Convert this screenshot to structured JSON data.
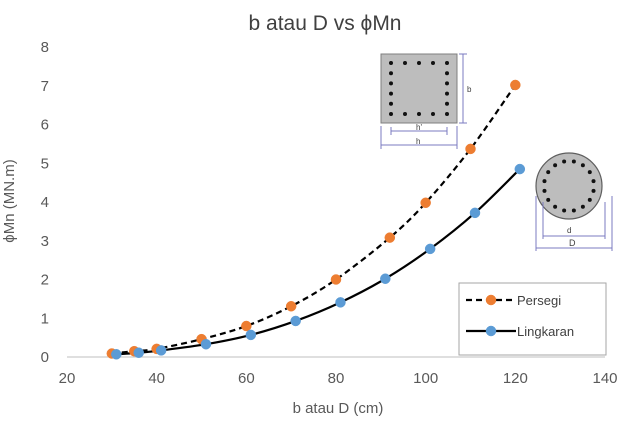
{
  "chart_data": {
    "type": "line",
    "title": "b atau D vs ϕMn",
    "xlabel": "b atau D (cm)",
    "ylabel": "ϕMn (MN.m)",
    "xlim": [
      20,
      140
    ],
    "ylim": [
      0,
      8
    ],
    "x_ticks": [
      "20",
      "40",
      "60",
      "80",
      "100",
      "120",
      "140"
    ],
    "y_ticks": [
      "0",
      "1",
      "2",
      "3",
      "4",
      "5",
      "6",
      "7",
      "8"
    ],
    "grid": false,
    "legend_position": "bottom-right",
    "series": [
      {
        "name": "Persegi",
        "style": "dashed",
        "marker_color": "#ED7D31",
        "line_color": "#000000",
        "x": [
          30,
          35,
          40,
          50,
          60,
          70,
          80,
          92,
          100,
          110,
          120
        ],
        "y": [
          0.09,
          0.15,
          0.21,
          0.46,
          0.8,
          1.31,
          2.0,
          3.08,
          3.98,
          5.37,
          7.02
        ]
      },
      {
        "name": "Lingkaran",
        "style": "solid",
        "marker_color": "#5B9BD5",
        "line_color": "#000000",
        "x": [
          31,
          36,
          41,
          51,
          61,
          71,
          81,
          91,
          101,
          111,
          121
        ],
        "y": [
          0.07,
          0.11,
          0.17,
          0.33,
          0.57,
          0.93,
          1.41,
          2.02,
          2.79,
          3.72,
          4.85
        ]
      }
    ],
    "inset_square": {
      "labels": [
        "b",
        "h'",
        "h"
      ]
    },
    "inset_circle": {
      "labels": [
        "d",
        "D"
      ]
    }
  }
}
